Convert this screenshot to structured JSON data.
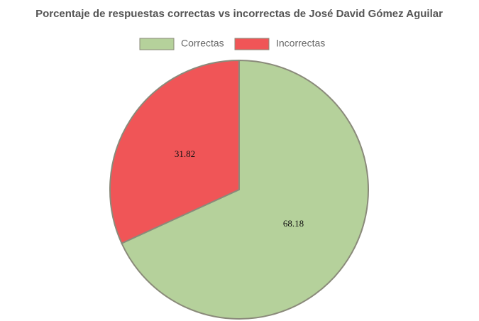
{
  "chart_data": {
    "type": "pie",
    "title": "Porcentaje de respuestas correctas vs incorrectas de José David Gómez Aguilar",
    "categories": [
      "Correctas",
      "Incorrectas"
    ],
    "values": [
      68.18,
      31.82
    ],
    "colors": [
      "#b5d19b",
      "#f05557"
    ],
    "legend": "top"
  }
}
